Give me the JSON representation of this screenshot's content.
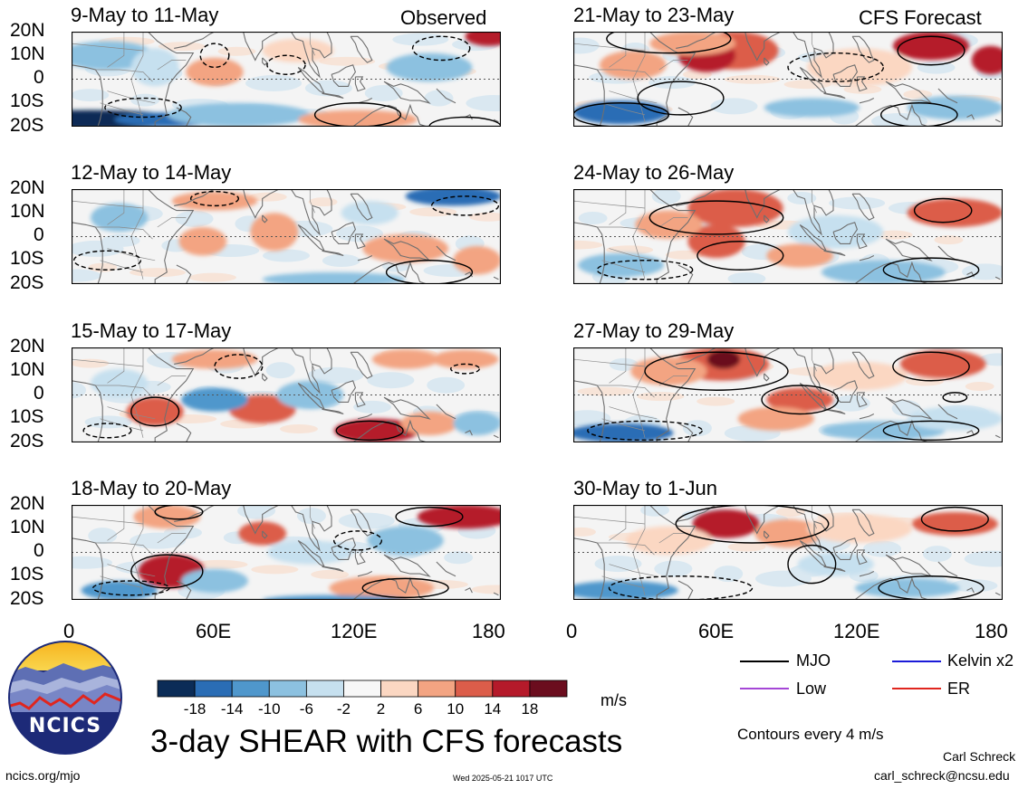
{
  "chart_data": {
    "type": "heatmap",
    "title": "3-day SHEAR with CFS forecasts",
    "units": "m/s",
    "contour_note": "Contours every 4 m/s",
    "observed_label": "Observed",
    "forecast_label": "CFS Forecast",
    "y_ticks": [
      "20N",
      "10N",
      "0",
      "10S",
      "20S"
    ],
    "x_ticks": [
      "0",
      "60E",
      "120E",
      "180"
    ],
    "xlim": [
      0,
      180
    ],
    "ylim": [
      -20,
      20
    ],
    "colorbar": {
      "labels": [
        "-18",
        "-14",
        "-10",
        "-6",
        "-2",
        "2",
        "6",
        "10",
        "14",
        "18"
      ],
      "colors": [
        "#0b2c57",
        "#2a6db5",
        "#4f97cc",
        "#8cc1e0",
        "#c6e0ef",
        "#f7f7f7",
        "#fbd7c2",
        "#f3a482",
        "#dc5d4a",
        "#b51a2a",
        "#6b0d1e"
      ]
    },
    "legend": [
      {
        "label": "MJO",
        "color": "#000000"
      },
      {
        "label": "Kelvin x2",
        "color": "#1b1bd8"
      },
      {
        "label": "Low",
        "color": "#a546d6"
      },
      {
        "label": "ER",
        "color": "#e0261e"
      }
    ],
    "panels": [
      {
        "period": "9-May to 11-May",
        "kind": "observed"
      },
      {
        "period": "12-May to 14-May",
        "kind": "observed"
      },
      {
        "period": "15-May to 17-May",
        "kind": "observed"
      },
      {
        "period": "18-May to 20-May",
        "kind": "observed"
      },
      {
        "period": "21-May to 23-May",
        "kind": "forecast"
      },
      {
        "period": "24-May to 26-May",
        "kind": "forecast"
      },
      {
        "period": "27-May to 29-May",
        "kind": "forecast"
      },
      {
        "period": "30-May to 1-Jun",
        "kind": "forecast"
      }
    ]
  },
  "logo": {
    "text": "NCICS"
  },
  "footer": {
    "site": "ncics.org/mjo",
    "timestamp": "Wed 2025-05-21 1017 UTC",
    "author": "Carl Schreck",
    "email": "carl_schreck@ncsu.edu"
  }
}
